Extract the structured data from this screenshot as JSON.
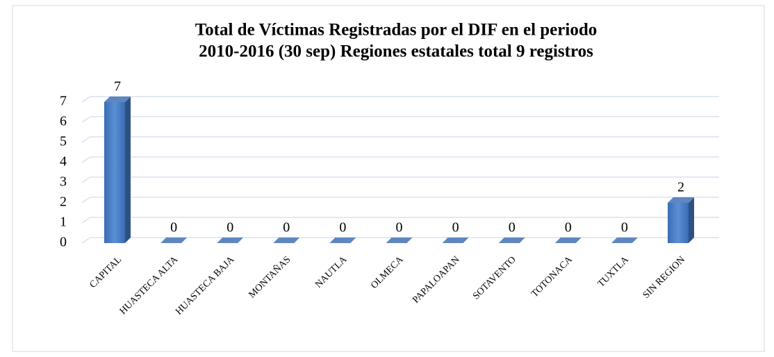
{
  "chart_data": {
    "type": "bar",
    "title": [
      "Total de Víctimas Registradas por el DIF en el periodo",
      "2010-2016  (30 sep) Regiones estatales  total 9 registros"
    ],
    "categories": [
      "CAPITAL",
      "HUASTECA ALTA",
      "HUASTECA BAJA",
      "MONTAÑAS",
      "NAUTLA",
      "OLMECA",
      "PAPALOAPAN",
      "SOTAVENTO",
      "TOTONACA",
      "TUXTLA",
      "SIN REGION"
    ],
    "values": [
      7,
      0,
      0,
      0,
      0,
      0,
      0,
      0,
      0,
      0,
      2
    ],
    "color": "#4a7ec4",
    "ylim": [
      0,
      7
    ],
    "yticks": [
      0,
      1,
      2,
      3,
      4,
      5,
      6,
      7
    ],
    "grid": true
  }
}
